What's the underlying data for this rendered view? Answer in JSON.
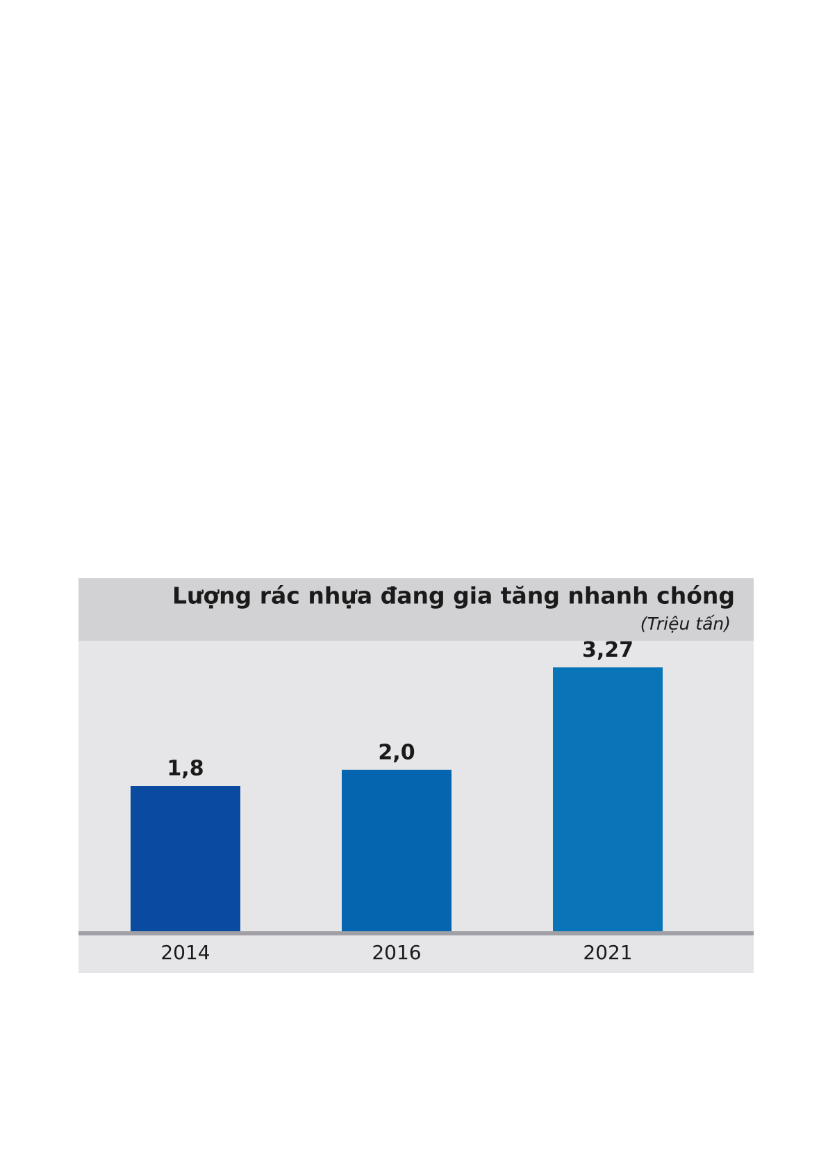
{
  "chart_data": {
    "type": "bar",
    "title": "Lượng rác nhựa đang gia tăng nhanh chóng",
    "subtitle": "(Triệu tấn)",
    "categories": [
      "2014",
      "2016",
      "2021"
    ],
    "values": [
      1.8,
      2.0,
      3.27
    ],
    "value_labels": [
      "1,8",
      "2,0",
      "3,27"
    ],
    "colors": [
      "#0a4aa0",
      "#0565ae",
      "#0a74b8"
    ],
    "ylim": [
      0,
      3.6
    ]
  }
}
